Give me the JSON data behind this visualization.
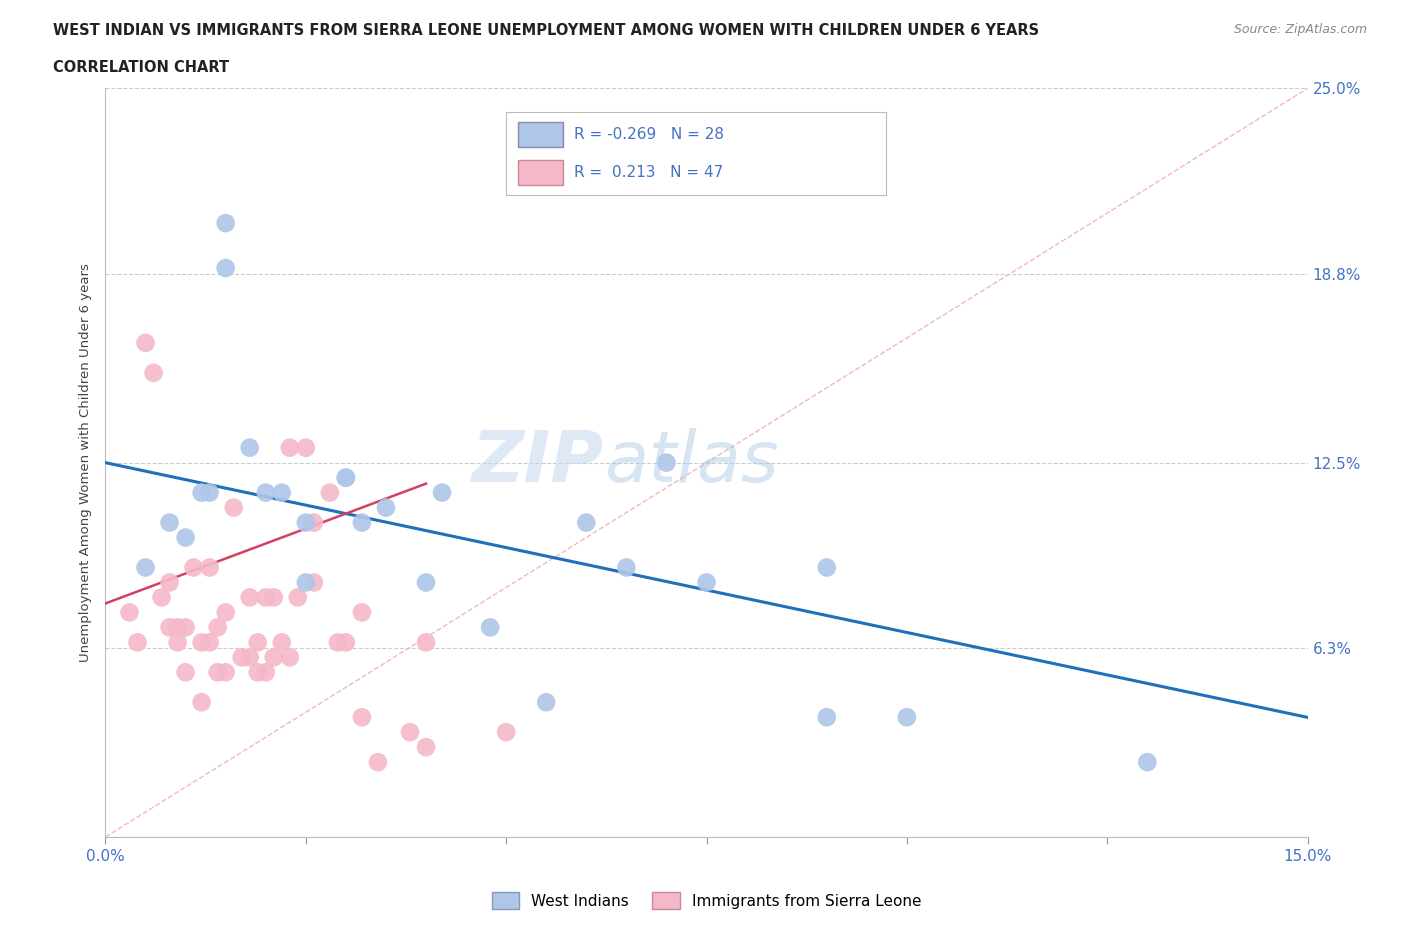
{
  "title_line1": "WEST INDIAN VS IMMIGRANTS FROM SIERRA LEONE UNEMPLOYMENT AMONG WOMEN WITH CHILDREN UNDER 6 YEARS",
  "title_line2": "CORRELATION CHART",
  "source": "Source: ZipAtlas.com",
  "ylabel": "Unemployment Among Women with Children Under 6 years",
  "xlim": [
    0.0,
    0.15
  ],
  "ylim": [
    0.0,
    0.25
  ],
  "xtick_vals": [
    0.0,
    0.025,
    0.05,
    0.075,
    0.1,
    0.125,
    0.15
  ],
  "yticks_right": [
    0.0,
    0.063,
    0.125,
    0.188,
    0.25
  ],
  "ytick_labels_right": [
    "",
    "6.3%",
    "12.5%",
    "18.8%",
    "25.0%"
  ],
  "blue_color": "#aec6e8",
  "pink_color": "#f4b8c8",
  "blue_line_color": "#1f6fba",
  "pink_line_color": "#d44060",
  "ref_line_color": "#f4b8c8",
  "grid_color": "#cccccc",
  "title_color": "#222222",
  "axis_color": "#4472c4",
  "legend_label_blue": "West Indians",
  "legend_label_pink": "Immigrants from Sierra Leone",
  "R_blue": -0.269,
  "N_blue": 28,
  "R_pink": 0.213,
  "N_pink": 47,
  "west_indians_x": [
    0.005,
    0.008,
    0.01,
    0.012,
    0.013,
    0.015,
    0.015,
    0.018,
    0.02,
    0.022,
    0.025,
    0.025,
    0.03,
    0.03,
    0.032,
    0.035,
    0.04,
    0.042,
    0.048,
    0.055,
    0.06,
    0.065,
    0.07,
    0.075,
    0.09,
    0.09,
    0.1,
    0.13
  ],
  "west_indians_y": [
    0.09,
    0.105,
    0.1,
    0.115,
    0.115,
    0.19,
    0.205,
    0.13,
    0.115,
    0.115,
    0.105,
    0.085,
    0.12,
    0.12,
    0.105,
    0.11,
    0.085,
    0.115,
    0.07,
    0.045,
    0.105,
    0.09,
    0.125,
    0.085,
    0.09,
    0.04,
    0.04,
    0.025
  ],
  "sierra_leone_x": [
    0.003,
    0.004,
    0.005,
    0.006,
    0.007,
    0.008,
    0.008,
    0.009,
    0.009,
    0.01,
    0.01,
    0.011,
    0.012,
    0.012,
    0.013,
    0.013,
    0.014,
    0.014,
    0.015,
    0.015,
    0.016,
    0.017,
    0.018,
    0.018,
    0.019,
    0.019,
    0.02,
    0.02,
    0.021,
    0.021,
    0.022,
    0.023,
    0.023,
    0.024,
    0.025,
    0.026,
    0.026,
    0.028,
    0.029,
    0.03,
    0.032,
    0.032,
    0.034,
    0.038,
    0.04,
    0.04,
    0.05
  ],
  "sierra_leone_y": [
    0.075,
    0.065,
    0.165,
    0.155,
    0.08,
    0.07,
    0.085,
    0.065,
    0.07,
    0.055,
    0.07,
    0.09,
    0.045,
    0.065,
    0.065,
    0.09,
    0.055,
    0.07,
    0.055,
    0.075,
    0.11,
    0.06,
    0.06,
    0.08,
    0.055,
    0.065,
    0.055,
    0.08,
    0.06,
    0.08,
    0.065,
    0.06,
    0.13,
    0.08,
    0.13,
    0.105,
    0.085,
    0.115,
    0.065,
    0.065,
    0.075,
    0.04,
    0.025,
    0.035,
    0.03,
    0.065,
    0.035
  ],
  "watermark_zip": "ZIP",
  "watermark_atlas": "atlas",
  "background_color": "#ffffff"
}
